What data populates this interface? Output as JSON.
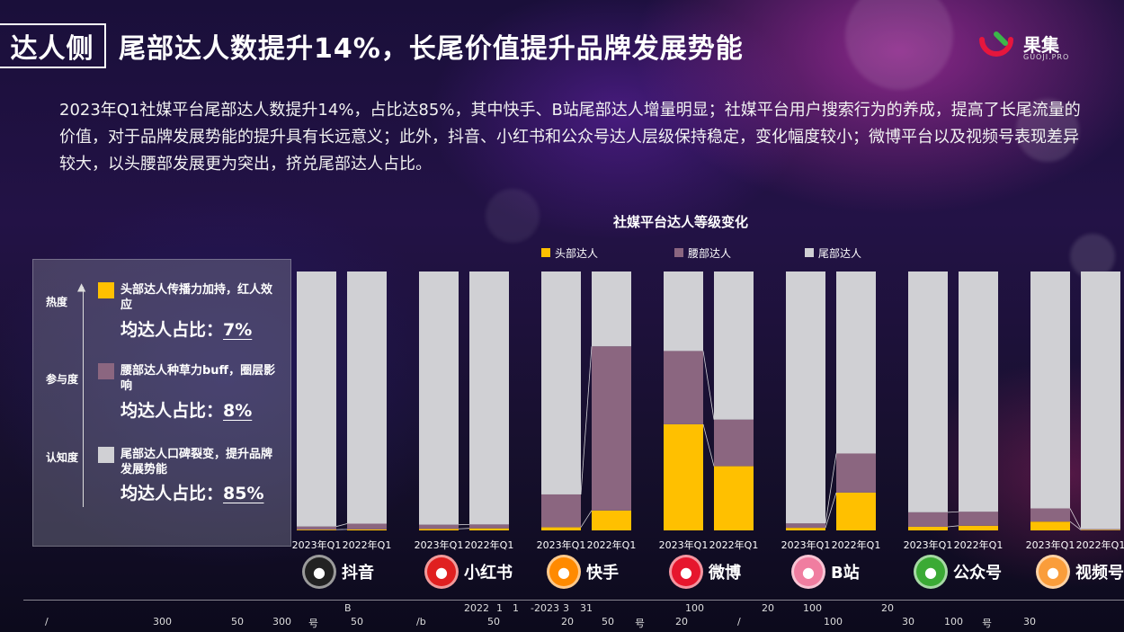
{
  "header": {
    "section_tag": "达人侧",
    "title": "尾部达人数提升14%，长尾价值提升品牌发展势能"
  },
  "logo": {
    "name": "果集",
    "sub": "GUOJI.PRO"
  },
  "description": "2023年Q1社媒平台尾部达人数提升14%，占比达85%，其中快手、B站尾部达人增量明显；社媒平台用户搜索行为的养成，提高了长尾流量的价值，对于品牌发展势能的提升具有长远意义；此外，抖音、小红书和公众号达人层级保持稳定，变化幅度较小；微博平台以及视频号表现差异较大，以头腰部发展更为突出，挤兑尾部达人占比。",
  "legend_panel": {
    "levels": [
      "热度",
      "参与度",
      "认知度"
    ],
    "items": [
      {
        "title": "头部达人传播力加持，红人效应",
        "share_label": "均达人占比：",
        "share_value": "7%",
        "color": "#FFC000"
      },
      {
        "title": "腰部达人种草力buff，圈层影响",
        "share_label": "均达人占比：",
        "share_value": "8%",
        "color": "#8B6680"
      },
      {
        "title": "尾部达人口碑裂变，提升品牌发展势能",
        "share_label": "均达人占比：",
        "share_value": "85%",
        "color": "#D0D0D4"
      }
    ]
  },
  "chart_data": {
    "type": "bar",
    "stacked": true,
    "percent": true,
    "title": "社媒平台达人等级变化",
    "legend": [
      "头部达人",
      "腰部达人",
      "尾部达人"
    ],
    "legend_position": "top",
    "colors": {
      "头部达人": "#FFC000",
      "腰部达人": "#8B6680",
      "尾部达人": "#D0D0D4"
    },
    "period_labels": [
      "2023年Q1",
      "2022年Q1"
    ],
    "platforms": [
      {
        "name": "抖音",
        "icon": "douyin-icon",
        "icon_color": "#222222",
        "periods": [
          {
            "head": 0.3,
            "waist": 1.2,
            "tail": 98.5
          },
          {
            "head": 0.4,
            "waist": 2.2,
            "tail": 97.4
          }
        ]
      },
      {
        "name": "小红书",
        "icon": "xiaohongshu-icon",
        "icon_color": "#E02020",
        "periods": [
          {
            "head": 0.6,
            "waist": 1.6,
            "tail": 97.8
          },
          {
            "head": 0.8,
            "waist": 1.5,
            "tail": 97.7
          }
        ]
      },
      {
        "name": "快手",
        "icon": "kuaishou-icon",
        "icon_color": "#FF8A00",
        "periods": [
          {
            "head": 1.2,
            "waist": 12.7,
            "tail": 86.1
          },
          {
            "head": 7.7,
            "waist": 63.4,
            "tail": 28.9
          }
        ]
      },
      {
        "name": "微博",
        "icon": "weibo-icon",
        "icon_color": "#E6162D",
        "periods": [
          {
            "head": 41.0,
            "waist": 28.3,
            "tail": 30.7
          },
          {
            "head": 24.8,
            "waist": 18.0,
            "tail": 57.2
          }
        ]
      },
      {
        "name": "B站",
        "icon": "bilibili-icon",
        "icon_color": "#F07DA0",
        "periods": [
          {
            "head": 1.0,
            "waist": 1.7,
            "tail": 97.3
          },
          {
            "head": 14.6,
            "waist": 15.1,
            "tail": 70.3
          }
        ]
      },
      {
        "name": "公众号",
        "icon": "wechat-mp-icon",
        "icon_color": "#3BAA35",
        "periods": [
          {
            "head": 1.4,
            "waist": 5.6,
            "tail": 93.0
          },
          {
            "head": 1.8,
            "waist": 5.4,
            "tail": 92.8
          }
        ]
      },
      {
        "name": "视频号",
        "icon": "channels-icon",
        "icon_color": "#FA9D3B",
        "periods": [
          {
            "head": 3.4,
            "waist": 5.1,
            "tail": 91.5
          },
          {
            "head": 0.2,
            "waist": 0.3,
            "tail": 99.5
          }
        ]
      }
    ]
  },
  "footer": {
    "items": [
      "B",
      "2022",
      "1",
      "1",
      "-2023",
      "3",
      "31",
      "100",
      "20",
      "100",
      "20",
      "/",
      "300",
      "50",
      "300",
      "号",
      "50",
      "/b",
      "50",
      "20",
      "50",
      "号",
      "20",
      "/",
      "100",
      "30",
      "100",
      "号",
      "30"
    ]
  }
}
